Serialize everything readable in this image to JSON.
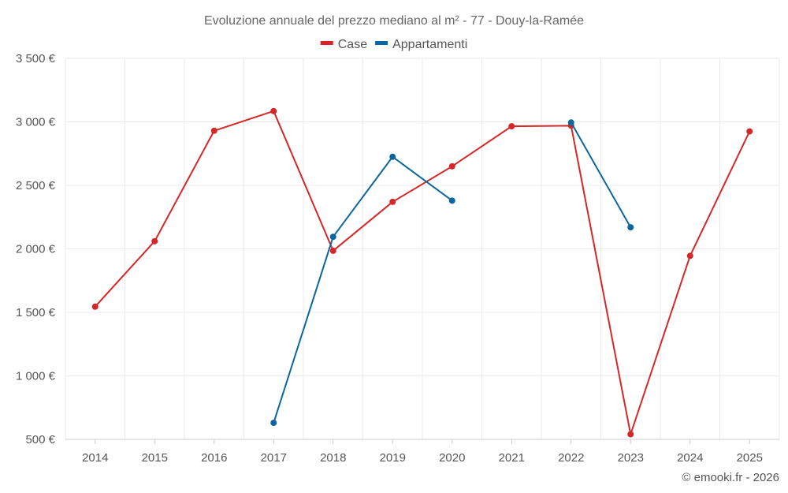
{
  "chart_data": {
    "type": "line",
    "title": "Evoluzione annuale del prezzo mediano al m² - 77 - Douy-la-Ramée",
    "categories": [
      "2014",
      "2015",
      "2016",
      "2017",
      "2018",
      "2019",
      "2020",
      "2021",
      "2022",
      "2023",
      "2024",
      "2025"
    ],
    "y_ticks": [
      500,
      1000,
      1500,
      2000,
      2500,
      3000,
      3500
    ],
    "y_tick_labels": [
      "500 €",
      "1 000 €",
      "1 500 €",
      "2 000 €",
      "2 500 €",
      "3 000 €",
      "3 500 €"
    ],
    "ylim": [
      500,
      3500
    ],
    "legend_position": "top-center",
    "grid": true,
    "series": [
      {
        "name": "Case",
        "color": "#d62728",
        "values": [
          1545,
          2060,
          2930,
          3085,
          1985,
          2370,
          2650,
          2965,
          2970,
          540,
          1945,
          2925
        ]
      },
      {
        "name": "Appartamenti",
        "color": "#0a66a0",
        "values": [
          null,
          null,
          null,
          630,
          2095,
          2725,
          2380,
          null,
          2995,
          2170,
          null,
          null
        ]
      }
    ]
  },
  "credit": "© emooki.fr - 2026"
}
